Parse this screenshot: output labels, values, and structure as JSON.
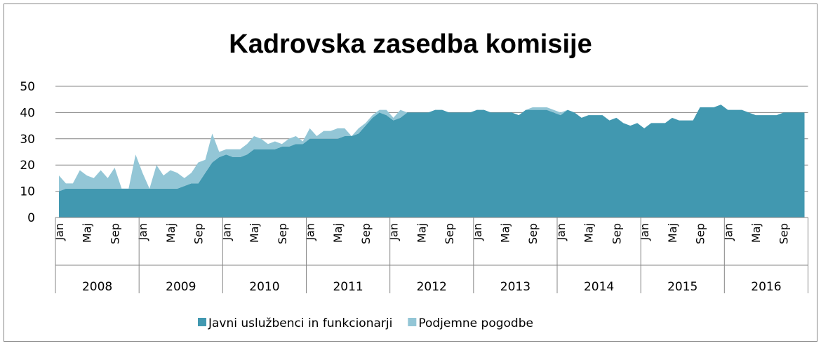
{
  "chart_data": {
    "type": "stacked_area",
    "title": "Kadrovska zasedba komisije",
    "categories": [
      "Jan",
      null,
      null,
      null,
      "Maj",
      null,
      null,
      null,
      "Sep",
      null,
      null,
      null,
      "Jan",
      null,
      null,
      null,
      "Maj",
      null,
      null,
      null,
      "Sep",
      null,
      null,
      null,
      "Jan",
      null,
      null,
      null,
      "Maj",
      null,
      null,
      null,
      "Sep",
      null,
      null,
      null,
      "Jan",
      null,
      null,
      null,
      "Maj",
      null,
      null,
      null,
      "Sep",
      null,
      null,
      null,
      "Jan",
      null,
      null,
      null,
      "Maj",
      null,
      null,
      null,
      "Sep",
      null,
      null,
      null,
      "Jan",
      null,
      null,
      null,
      "Maj",
      null,
      null,
      null,
      "Sep",
      null,
      null,
      null,
      "Jan",
      null,
      null,
      null,
      "Maj",
      null,
      null,
      null,
      "Sep",
      null,
      null,
      null,
      "Jan",
      null,
      null,
      null,
      "Maj",
      null,
      null,
      null,
      "Sep",
      null,
      null,
      null,
      "Jan",
      null,
      null,
      null,
      "Maj",
      null,
      null,
      null,
      "Sep",
      null,
      null,
      null
    ],
    "years": [
      "2008",
      "2009",
      "2010",
      "2011",
      "2012",
      "2013",
      "2014",
      "2015",
      "2016"
    ],
    "series": [
      {
        "name": "Javni uslužbenci in funkcionarji",
        "color": "#4198b0",
        "values": [
          10,
          11,
          11,
          11,
          11,
          11,
          11,
          11,
          11,
          11,
          11,
          11,
          11,
          11,
          11,
          11,
          11,
          11,
          12,
          13,
          13,
          17,
          21,
          23,
          24,
          23,
          23,
          24,
          26,
          26,
          26,
          26,
          27,
          27,
          28,
          28,
          30,
          30,
          30,
          30,
          30,
          31,
          31,
          32,
          35,
          38,
          40,
          39,
          37,
          38,
          40,
          40,
          40,
          40,
          41,
          41,
          40,
          40,
          40,
          40,
          41,
          41,
          40,
          40,
          40,
          40,
          39,
          41,
          41,
          41,
          41,
          40,
          39,
          41,
          40,
          38,
          39,
          39,
          39,
          37,
          38,
          36,
          35,
          36,
          34,
          36,
          36,
          36,
          38,
          37,
          37,
          37,
          42,
          42,
          42,
          43,
          41,
          41,
          41,
          40,
          39,
          39,
          39,
          39,
          40,
          40,
          40,
          40
        ]
      },
      {
        "name": "Podjemne pogodbe",
        "color": "#93c6d6",
        "values": [
          6,
          2,
          2,
          7,
          5,
          4,
          7,
          4,
          8,
          0,
          0,
          13,
          6,
          0,
          9,
          5,
          7,
          6,
          3,
          4,
          8,
          5,
          11,
          2,
          2,
          3,
          3,
          4,
          5,
          4,
          2,
          3,
          1,
          3,
          3,
          1,
          4,
          1,
          3,
          3,
          4,
          3,
          0,
          2,
          1,
          1,
          1,
          2,
          1,
          3,
          0,
          0,
          0,
          0,
          0,
          0,
          0,
          0,
          0,
          0,
          0,
          0,
          0,
          0,
          0,
          0,
          0,
          0,
          1,
          1,
          1,
          1,
          1,
          0,
          0,
          0,
          0,
          0,
          0,
          0,
          0,
          0,
          0,
          0,
          0,
          0,
          0,
          0,
          0,
          0,
          0,
          0,
          0,
          0,
          0,
          0,
          0,
          0,
          0,
          0,
          0,
          0,
          0,
          0,
          0,
          0,
          0,
          0
        ]
      }
    ],
    "ylim": [
      0,
      50
    ],
    "yticks": [
      0,
      10,
      20,
      30,
      40,
      50
    ],
    "grid": true,
    "legend": "bottom"
  }
}
